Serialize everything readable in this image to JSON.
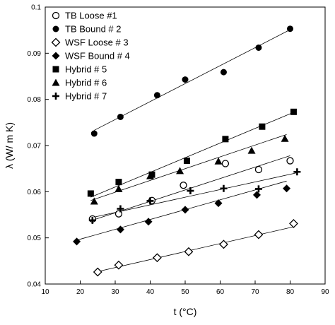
{
  "chart_data": {
    "type": "scatter",
    "title": "",
    "xlabel": "t (°C)",
    "ylabel": "λ (W/ m K)",
    "xlim": [
      10,
      90
    ],
    "ylim": [
      0.04,
      0.1
    ],
    "xticks": [
      "10",
      "20",
      "30",
      "40",
      "50",
      "60",
      "70",
      "80",
      "90"
    ],
    "yticks": [
      "0.04",
      "0.05",
      "0.06",
      "0.07",
      "0.08",
      "0.09",
      "0.1"
    ],
    "grid": false,
    "legend_position": "top-left",
    "series": [
      {
        "name": "TB Loose #1",
        "marker": "open-circle",
        "x": [
          23.5,
          31,
          40.5,
          49.5,
          61.5,
          71,
          80
        ],
        "y": [
          0.0541,
          0.0552,
          0.0581,
          0.0614,
          0.0661,
          0.0648,
          0.0667
        ],
        "fit": [
          [
            23,
            0.0537
          ],
          [
            80,
            0.0678
          ]
        ]
      },
      {
        "name": "TB Bound # 2",
        "marker": "filled-circle",
        "x": [
          24,
          31.5,
          42,
          50,
          61,
          71,
          80
        ],
        "y": [
          0.0726,
          0.0762,
          0.0809,
          0.0843,
          0.0859,
          0.0912,
          0.0953
        ],
        "fit": [
          [
            24,
            0.0733
          ],
          [
            80,
            0.0951
          ]
        ]
      },
      {
        "name": "WSF Loose # 3",
        "marker": "open-diamond",
        "x": [
          25,
          31,
          42,
          51,
          61,
          71,
          81
        ],
        "y": [
          0.0426,
          0.0441,
          0.0457,
          0.047,
          0.0486,
          0.0507,
          0.0531
        ],
        "fit": [
          [
            25,
            0.0427
          ],
          [
            81,
            0.0524
          ]
        ]
      },
      {
        "name": "WSF Bound # 4",
        "marker": "filled-diamond",
        "x": [
          19,
          31.5,
          39.5,
          50,
          59.5,
          70.5,
          79
        ],
        "y": [
          0.0492,
          0.0518,
          0.0535,
          0.0561,
          0.0575,
          0.0593,
          0.0607
        ],
        "fit": [
          [
            19,
            0.0495
          ],
          [
            79,
            0.0623
          ]
        ]
      },
      {
        "name": "Hybrid # 5",
        "marker": "filled-square",
        "x": [
          23,
          31,
          40.5,
          50.5,
          61.5,
          72,
          81
        ],
        "y": [
          0.0596,
          0.0621,
          0.0637,
          0.0667,
          0.0714,
          0.0741,
          0.0773
        ],
        "fit": [
          [
            23,
            0.0588
          ],
          [
            81,
            0.0772
          ]
        ]
      },
      {
        "name": "Hybrid # 6",
        "marker": "filled-triangle",
        "x": [
          24,
          31,
          40,
          48.5,
          59.5,
          69,
          78.5
        ],
        "y": [
          0.0579,
          0.0606,
          0.0634,
          0.0645,
          0.0666,
          0.0689,
          0.0715
        ],
        "fit": [
          [
            23,
            0.0581
          ],
          [
            79,
            0.0724
          ]
        ]
      },
      {
        "name": "Hybrid # 7",
        "marker": "plus",
        "x": [
          23.5,
          31.5,
          40,
          51.5,
          61,
          71,
          82
        ],
        "y": [
          0.0538,
          0.0563,
          0.058,
          0.0602,
          0.0607,
          0.0606,
          0.0643
        ],
        "fit": [
          [
            24,
            0.0545
          ],
          [
            82,
            0.0641
          ]
        ]
      }
    ]
  }
}
